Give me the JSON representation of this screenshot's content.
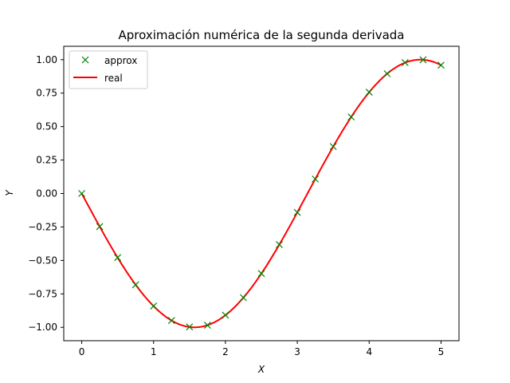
{
  "chart_data": {
    "type": "line",
    "title": "Aproximación numérica de la segunda derivada",
    "xlabel": "X",
    "ylabel": "Y",
    "xlim": [
      -0.25,
      5.25
    ],
    "ylim": [
      -1.1,
      1.1
    ],
    "xticks": [
      0,
      1,
      2,
      3,
      4,
      5
    ],
    "xtick_labels": [
      "0",
      "1",
      "2",
      "3",
      "4",
      "5"
    ],
    "yticks": [
      -1.0,
      -0.75,
      -0.5,
      -0.25,
      0.0,
      0.25,
      0.5,
      0.75,
      1.0
    ],
    "ytick_labels": [
      "−1.00",
      "−0.75",
      "−0.50",
      "−0.25",
      "0.00",
      "0.25",
      "0.50",
      "0.75",
      "1.00"
    ],
    "grid": false,
    "legend_position": "top-left",
    "series": [
      {
        "name": "approx",
        "style": "marker-x",
        "color": "#008000",
        "x": [
          0,
          0.25,
          0.5,
          0.75,
          1.0,
          1.25,
          1.5,
          1.75,
          2.0,
          2.25,
          2.5,
          2.75,
          3.0,
          3.25,
          3.5,
          3.75,
          4.0,
          4.25,
          4.5,
          4.75,
          5.0
        ],
        "y": [
          0.0,
          -0.247,
          -0.479,
          -0.682,
          -0.841,
          -0.949,
          -0.997,
          -0.984,
          -0.909,
          -0.778,
          -0.598,
          -0.382,
          -0.141,
          0.108,
          0.351,
          0.572,
          0.757,
          0.895,
          0.978,
          0.999,
          0.959
        ]
      },
      {
        "name": "real",
        "style": "line",
        "color": "#ff0000",
        "function": "-sin(x)",
        "x_range": [
          0,
          5
        ]
      }
    ]
  }
}
